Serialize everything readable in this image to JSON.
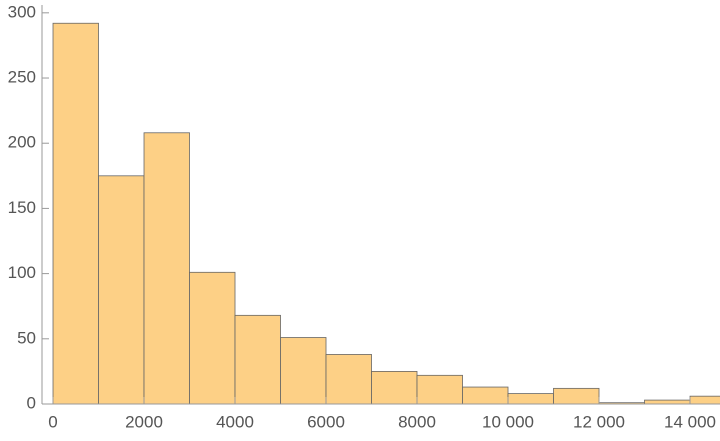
{
  "chart_data": {
    "type": "histogram",
    "bins": [
      0,
      1000,
      2000,
      3000,
      4000,
      5000,
      6000,
      7000,
      8000,
      9000,
      10000,
      11000,
      12000,
      13000,
      14000,
      15000
    ],
    "values": [
      292,
      175,
      208,
      101,
      68,
      51,
      38,
      25,
      22,
      13,
      8,
      12,
      1,
      3,
      6
    ],
    "color": "#fdd086",
    "xlim": [
      -242,
      14659
    ],
    "ylim": [
      0,
      306
    ],
    "xticks": [
      0,
      2000,
      4000,
      6000,
      8000,
      {
        "value": 10000,
        "label": "10 000"
      },
      {
        "value": 12000,
        "label": "12 000"
      },
      {
        "value": 14000,
        "label": "14 000"
      }
    ],
    "yticks": [
      0,
      50,
      100,
      150,
      200,
      250,
      300
    ]
  }
}
